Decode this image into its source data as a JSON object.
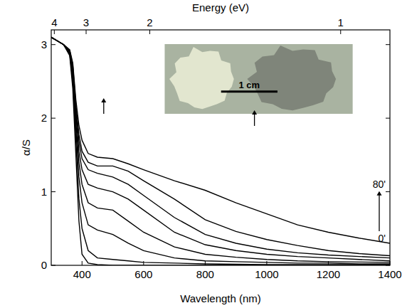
{
  "chart_data": {
    "type": "line",
    "x_label": "Wavelength (nm)",
    "y_label": "α/S",
    "x2label": "Energy (eV)",
    "xlim": [
      300,
      1400
    ],
    "xticks": [
      400,
      600,
      800,
      1000,
      1200,
      1400
    ],
    "x2ticks": [
      {
        "value": 310,
        "label": "4"
      },
      {
        "value": 413.3,
        "label": "3"
      },
      {
        "value": 620,
        "label": "2"
      },
      {
        "value": 1240,
        "label": "1"
      }
    ],
    "ylim": [
      0,
      3.2
    ],
    "yticks": [
      0,
      1,
      2,
      3
    ],
    "grid": false,
    "color": "#000000",
    "annotations": [
      {
        "text": "80'"
      },
      {
        "text": "0'"
      },
      {
        "text": "1 cm"
      }
    ],
    "x": [
      300,
      320,
      340,
      360,
      370,
      380,
      390,
      400,
      420,
      450,
      500,
      550,
      600,
      700,
      800,
      900,
      1000,
      1100,
      1200,
      1300,
      1400
    ],
    "series": [
      {
        "color": "#000000",
        "values": [
          3.1,
          3.05,
          3.0,
          2.85,
          2.4,
          1.5,
          0.6,
          0.15,
          0.03,
          0.01,
          0.0,
          0.0,
          0.0,
          0.0,
          0.0,
          0.0,
          0.0,
          0.0,
          0.0,
          0.0,
          0.0
        ]
      },
      {
        "color": "#000000",
        "values": [
          3.1,
          3.05,
          3.0,
          2.87,
          2.5,
          1.7,
          0.9,
          0.5,
          0.2,
          0.1,
          0.08,
          0.06,
          0.04,
          0.03,
          0.02,
          0.015,
          0.01,
          0.01,
          0.01,
          0.01,
          0.01
        ]
      },
      {
        "color": "#000000",
        "values": [
          3.1,
          3.05,
          3.0,
          2.88,
          2.55,
          1.85,
          1.2,
          0.85,
          0.55,
          0.48,
          0.42,
          0.3,
          0.2,
          0.1,
          0.06,
          0.05,
          0.04,
          0.03,
          0.03,
          0.02,
          0.02
        ]
      },
      {
        "color": "#000000",
        "values": [
          3.1,
          3.05,
          3.0,
          2.89,
          2.6,
          1.95,
          1.4,
          1.1,
          0.85,
          0.78,
          0.75,
          0.6,
          0.45,
          0.25,
          0.15,
          0.11,
          0.08,
          0.06,
          0.05,
          0.045,
          0.04
        ]
      },
      {
        "color": "#000000",
        "values": [
          3.1,
          3.05,
          3.0,
          2.9,
          2.65,
          2.05,
          1.55,
          1.3,
          1.1,
          1.05,
          1.0,
          0.9,
          0.75,
          0.45,
          0.28,
          0.2,
          0.15,
          0.12,
          0.1,
          0.08,
          0.06
        ]
      },
      {
        "color": "#000000",
        "values": [
          3.1,
          3.05,
          3.0,
          2.91,
          2.7,
          2.12,
          1.68,
          1.45,
          1.3,
          1.25,
          1.2,
          1.1,
          0.95,
          0.65,
          0.42,
          0.3,
          0.22,
          0.17,
          0.14,
          0.12,
          0.1
        ]
      },
      {
        "color": "#000000",
        "values": [
          3.1,
          3.05,
          3.0,
          2.92,
          2.72,
          2.18,
          1.78,
          1.55,
          1.4,
          1.35,
          1.35,
          1.28,
          1.15,
          0.9,
          0.62,
          0.46,
          0.35,
          0.27,
          0.2,
          0.16,
          0.13
        ]
      },
      {
        "color": "#000000",
        "values": [
          3.1,
          3.05,
          3.0,
          2.93,
          2.75,
          2.25,
          1.9,
          1.7,
          1.52,
          1.47,
          1.45,
          1.38,
          1.3,
          1.15,
          1.02,
          0.85,
          0.7,
          0.55,
          0.45,
          0.37,
          0.3
        ]
      }
    ]
  }
}
